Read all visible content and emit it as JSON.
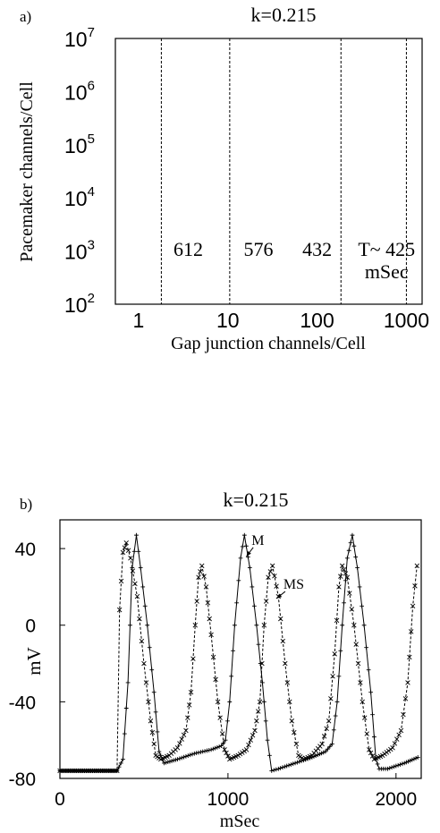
{
  "chart_data": [
    {
      "panel_label": "a)",
      "type": "line",
      "title": "k=0.215",
      "xlabel": "Gap junction channels/Cell",
      "ylabel": "Pacemaker channels/Cell",
      "x_scale": "log",
      "y_scale": "log",
      "xlim": [
        0.55,
        1500
      ],
      "ylim": [
        100,
        10000000
      ],
      "x_ticks": [
        {
          "value": 1,
          "label": "1"
        },
        {
          "value": 10,
          "label": "10"
        },
        {
          "value": 100,
          "label": "100"
        },
        {
          "value": 1000,
          "label": "1000"
        }
      ],
      "y_ticks": [
        {
          "value": 100,
          "base": "10",
          "exp": "2"
        },
        {
          "value": 1000,
          "base": "10",
          "exp": "3"
        },
        {
          "value": 10000,
          "base": "10",
          "exp": "4"
        },
        {
          "value": 100000,
          "base": "10",
          "exp": "5"
        },
        {
          "value": 1000000,
          "base": "10",
          "exp": "6"
        },
        {
          "value": 10000000,
          "base": "10",
          "exp": "7"
        }
      ],
      "boundaries_x": [
        1.8,
        10.5,
        185,
        1000
      ],
      "region_labels": [
        {
          "text": "612",
          "x": 3.6,
          "y": 1100
        },
        {
          "text": "576",
          "x": 22,
          "y": 1100
        },
        {
          "text": "432",
          "x": 100,
          "y": 1100
        },
        {
          "text": "T~ 425",
          "x": 600,
          "y": 1100
        },
        {
          "text": "mSec",
          "x": 600,
          "y": 420
        }
      ],
      "grid": false
    },
    {
      "panel_label": "b)",
      "type": "line",
      "title": "k=0.215",
      "xlabel": "mSec",
      "ylabel": "mV",
      "xlim": [
        0,
        2150
      ],
      "ylim": [
        -80,
        55
      ],
      "x_ticks": [
        0,
        1000,
        2000
      ],
      "y_ticks": [
        40,
        0,
        -40,
        -80
      ],
      "annotations": [
        {
          "text": "M",
          "x": 1140,
          "y": 42,
          "arrow_to": [
            1110,
            36
          ]
        },
        {
          "text": "MS",
          "x": 1330,
          "y": 19,
          "arrow_to": [
            1290,
            14
          ]
        }
      ],
      "series": [
        {
          "name": "M",
          "style": "solid line with + markers",
          "points": [
            [
              0,
              -76
            ],
            [
              340,
              -76
            ],
            [
              375,
              -70
            ],
            [
              405,
              -30
            ],
            [
              430,
              30
            ],
            [
              455,
              47
            ],
            [
              480,
              30
            ],
            [
              520,
              0
            ],
            [
              560,
              -35
            ],
            [
              590,
              -66
            ],
            [
              620,
              -72
            ],
            [
              700,
              -70
            ],
            [
              800,
              -67
            ],
            [
              900,
              -65
            ],
            [
              960,
              -63
            ],
            [
              985,
              -60
            ],
            [
              1010,
              -40
            ],
            [
              1040,
              0
            ],
            [
              1075,
              35
            ],
            [
              1098,
              47
            ],
            [
              1130,
              30
            ],
            [
              1170,
              0
            ],
            [
              1205,
              -30
            ],
            [
              1235,
              -60
            ],
            [
              1260,
              -76
            ],
            [
              1300,
              -75
            ],
            [
              1400,
              -72
            ],
            [
              1500,
              -69
            ],
            [
              1580,
              -66
            ],
            [
              1620,
              -62
            ],
            [
              1650,
              -40
            ],
            [
              1680,
              0
            ],
            [
              1710,
              35
            ],
            [
              1740,
              47
            ],
            [
              1770,
              30
            ],
            [
              1810,
              0
            ],
            [
              1850,
              -35
            ],
            [
              1880,
              -70
            ],
            [
              1900,
              -75
            ],
            [
              1950,
              -75
            ],
            [
              2050,
              -72
            ],
            [
              2130,
              -69
            ]
          ]
        },
        {
          "name": "MS",
          "style": "dashed line with x markers",
          "points": [
            [
              0,
              -76
            ],
            [
              340,
              -76
            ],
            [
              355,
              8
            ],
            [
              375,
              38
            ],
            [
              395,
              43
            ],
            [
              420,
              35
            ],
            [
              460,
              15
            ],
            [
              500,
              -20
            ],
            [
              540,
              -50
            ],
            [
              570,
              -68
            ],
            [
              600,
              -70
            ],
            [
              650,
              -68
            ],
            [
              700,
              -64
            ],
            [
              750,
              -55
            ],
            [
              780,
              -35
            ],
            [
              805,
              0
            ],
            [
              825,
              25
            ],
            [
              845,
              31
            ],
            [
              870,
              20
            ],
            [
              900,
              -5
            ],
            [
              940,
              -40
            ],
            [
              980,
              -65
            ],
            [
              1010,
              -70
            ],
            [
              1060,
              -68
            ],
            [
              1110,
              -65
            ],
            [
              1160,
              -55
            ],
            [
              1190,
              -40
            ],
            [
              1215,
              0
            ],
            [
              1240,
              25
            ],
            [
              1265,
              31
            ],
            [
              1300,
              15
            ],
            [
              1340,
              -20
            ],
            [
              1380,
              -50
            ],
            [
              1420,
              -68
            ],
            [
              1450,
              -70
            ],
            [
              1500,
              -68
            ],
            [
              1560,
              -62
            ],
            [
              1600,
              -50
            ],
            [
              1635,
              -15
            ],
            [
              1660,
              20
            ],
            [
              1680,
              31
            ],
            [
              1710,
              25
            ],
            [
              1750,
              0
            ],
            [
              1800,
              -40
            ],
            [
              1840,
              -65
            ],
            [
              1870,
              -70
            ],
            [
              1920,
              -68
            ],
            [
              1980,
              -64
            ],
            [
              2030,
              -55
            ],
            [
              2070,
              -30
            ],
            [
              2100,
              10
            ],
            [
              2125,
              31
            ]
          ]
        }
      ]
    }
  ]
}
